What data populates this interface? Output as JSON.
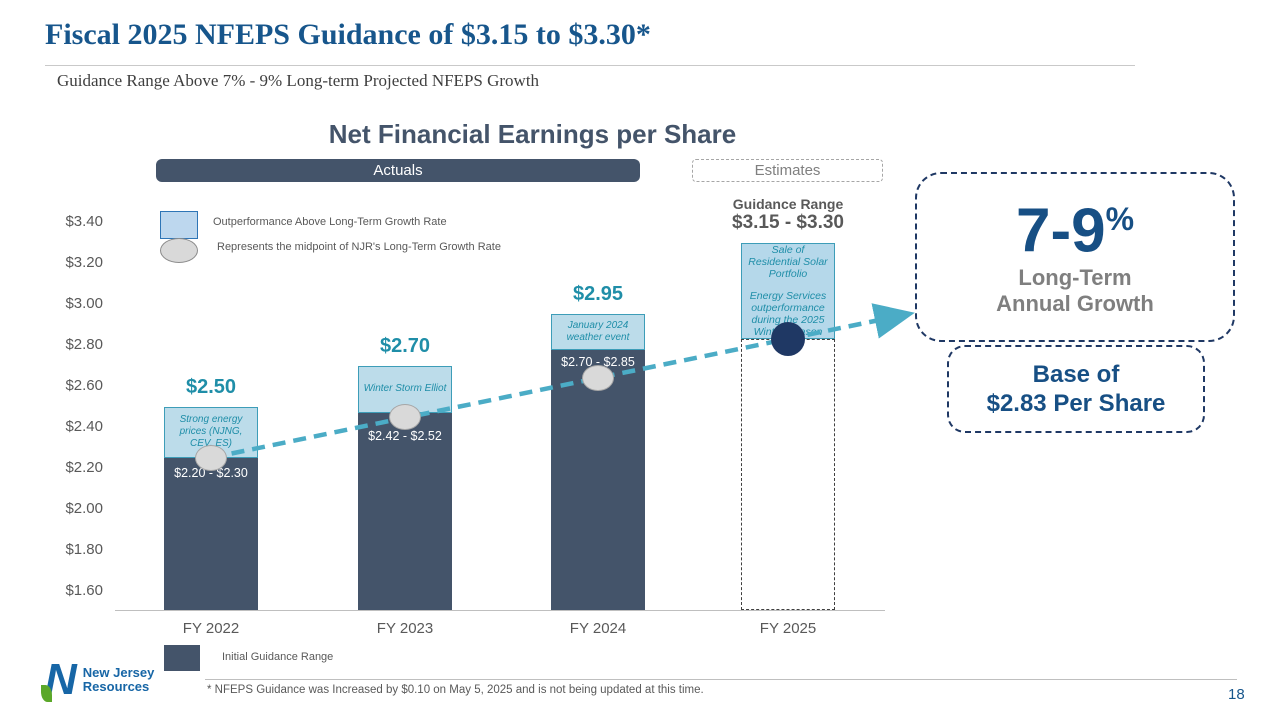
{
  "slide": {
    "title": "Fiscal 2025 NFEPS Guidance of $3.15 to $3.30*",
    "subtitle": "Guidance Range Above 7% - 9% Long-term Projected NFEPS Growth",
    "footnote": "* NFEPS Guidance was Increased by $0.10 on May 5, 2025 and is not being updated at this time.",
    "page_number": "18",
    "logo": {
      "line1": "New Jersey",
      "line2": "Resources"
    }
  },
  "chart": {
    "title": "Net Financial Earnings per Share",
    "actuals_label": "Actuals",
    "estimates_label": "Estimates",
    "legend": {
      "outperformance": "Outperformance Above Long-Term Growth Rate",
      "midpoint": "Represents the midpoint of NJR's Long-Term Growth Rate",
      "initial_guidance": "Initial Guidance Range"
    }
  },
  "callouts": {
    "growth_value": "7-9",
    "growth_pct": "%",
    "growth_label_line1": "Long-Term",
    "growth_label_line2": "Annual Growth",
    "base_line1": "Base of",
    "base_line2": "$2.83 Per Share"
  },
  "chart_data": {
    "type": "bar",
    "title": "Net Financial Earnings per Share",
    "categories": [
      "FY 2022",
      "FY 2023",
      "FY 2024",
      "FY 2025"
    ],
    "yticks": [
      3.4,
      3.2,
      3.0,
      2.8,
      2.6,
      2.4,
      2.2,
      2.0,
      1.8,
      1.6
    ],
    "ylim": [
      1.5,
      3.4
    ],
    "bars": [
      {
        "category": "FY 2022",
        "kind": "actual",
        "total": 2.5,
        "total_label": "$2.50",
        "initial_low": 2.2,
        "initial_high": 2.3,
        "initial_guidance_range": "$2.20 - $2.30",
        "outperformance_note": "Strong energy prices (NJNG, CEV, ES)",
        "midpoint_marker": 2.25
      },
      {
        "category": "FY 2023",
        "kind": "actual",
        "total": 2.7,
        "total_label": "$2.70",
        "initial_low": 2.42,
        "initial_high": 2.52,
        "initial_guidance_range": "$2.42 - $2.52",
        "outperformance_note": "Winter Storm Elliot",
        "midpoint_marker": 2.45
      },
      {
        "category": "FY 2024",
        "kind": "actual",
        "total": 2.95,
        "total_label": "$2.95",
        "initial_low": 2.7,
        "initial_high": 2.85,
        "initial_guidance_range": "$2.70 - $2.85",
        "outperformance_note": "January 2024 weather event",
        "midpoint_marker": 2.64
      },
      {
        "category": "FY 2025",
        "kind": "estimate",
        "guidance_label": "Guidance Range",
        "guidance_range": "$3.15 - $3.30",
        "guidance_low": 3.15,
        "guidance_high": 3.3,
        "note_1": "Sale of Residential Solar Portfolio",
        "note_2": "Energy Services outperformance during the 2025 Winter Season",
        "base": 2.83
      }
    ],
    "trend_line": {
      "style": "dashed",
      "color": "#4BACC6",
      "points": [
        2.25,
        2.45,
        2.64,
        2.83
      ],
      "annotation": "7-9% Long-Term Annual Growth, Base of $2.83 Per Share"
    },
    "colors": {
      "initial_guidance_bar": "#44546A",
      "outperformance_bar": "#BCDCEA",
      "trend": "#4BACC6",
      "base_marker": "#1F3864",
      "teal_text": "#1F8EA8",
      "title_blue": "#17568C"
    }
  }
}
